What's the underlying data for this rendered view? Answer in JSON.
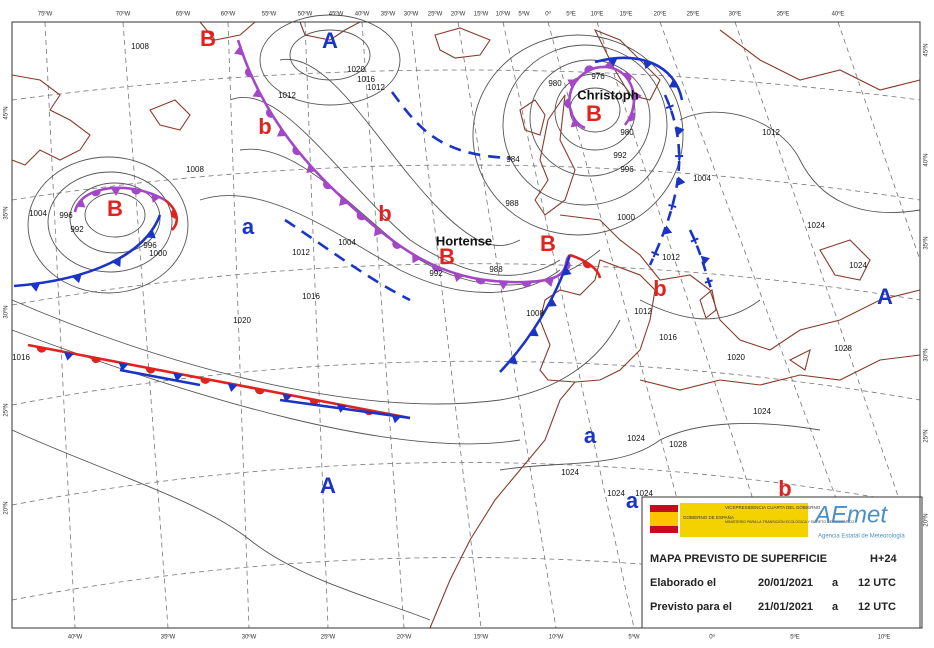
{
  "graticule": {
    "top": [
      "75ºW",
      "70ºW",
      "65ºW",
      "60ºW",
      "55ºW",
      "50ºW",
      "45ºW",
      "40ºW",
      "35ºW",
      "30ºW",
      "25ºW",
      "20ºW",
      "15ºW",
      "10ºW",
      "5ºW",
      "0º",
      "5ºE",
      "10ºE",
      "15ºE",
      "20ºE",
      "25ºE",
      "30ºE",
      "35ºE",
      "40ºE"
    ],
    "bottom": [
      "40ºW",
      "35ºW",
      "30ºW",
      "25ºW",
      "20ºW",
      "15ºW",
      "10ºW",
      "5ºW",
      "0º",
      "5ºE",
      "10ºE"
    ],
    "left": [
      "45ºN",
      "35ºN",
      "30ºN",
      "25ºN",
      "20ºN"
    ],
    "right": [
      "45ºN",
      "40ºN",
      "35ºN",
      "30ºN",
      "25ºN",
      "20ºN"
    ]
  },
  "centers": [
    "B",
    "A",
    "B",
    "B",
    "b",
    "b",
    "a",
    "B",
    "B",
    "b",
    "A",
    "A",
    "a",
    "a",
    "b"
  ],
  "storm_names": [
    "Christoph",
    "Hortense"
  ],
  "isobar_labels": [
    1008,
    1012,
    1016,
    1020,
    1012,
    984,
    988,
    980,
    976,
    980,
    992,
    996,
    1000,
    1004,
    1012,
    1004,
    996,
    992,
    996,
    1000,
    1008,
    1012,
    1004,
    1016,
    1020,
    1016,
    1012,
    1016,
    1020,
    1024,
    1028,
    1024,
    1024,
    1024,
    1028,
    1024,
    1024,
    1024,
    1012,
    992,
    988,
    1008
  ],
  "info_box": {
    "logo_gov": "GOBIERNO DE ESPAÑA",
    "logo_vice": "VICEPRESIDENCIA CUARTA DEL GOBIERNO",
    "logo_ministry": "MINISTERIO PARA LA TRANSICIÓN ECOLÓGICA Y EL RETO DEMOGRÁFICO",
    "logo_aemet": "AEmet",
    "logo_agency": "Agencia Estatal de Meteorología",
    "title": "MAPA PREVISTO DE SUPERFICIE",
    "horizon": "H+24",
    "made_label": "Elaborado el",
    "made_date": "20/01/2021",
    "made_at": "a",
    "made_time": "12 UTC",
    "valid_label": "Previsto para el",
    "valid_date": "21/01/2021",
    "valid_at": "a",
    "valid_time": "12 UTC"
  }
}
